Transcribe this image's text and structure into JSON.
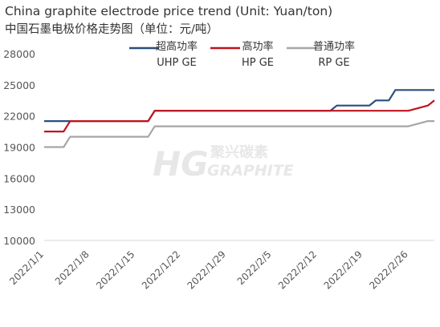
{
  "title_line1": "China graphite electrode price trend (Unit: Yuan/ton)",
  "title_line2": "中国石墨电极价格走势图（单位：元/吨）",
  "watermark": {
    "brand_cn": "聚兴碳素",
    "brand_en": "GRAPHITE"
  },
  "chart_data": {
    "type": "line",
    "title": "China graphite electrode price trend (Unit: Yuan/ton)",
    "subtitle": "中国石墨电极价格走势图（单位：元/吨）",
    "xlabel": "",
    "ylabel": "",
    "ylim": [
      10000,
      28000
    ],
    "y_ticks": [
      10000,
      13000,
      16000,
      19000,
      22000,
      25000,
      28000
    ],
    "y_tick_labels": [
      "10000",
      "13000",
      "16000",
      "19000",
      "22000",
      "25000",
      "28000"
    ],
    "x_range": [
      "2022/1/1",
      "2022/3/2"
    ],
    "x_ticks": [
      "2022/1/1",
      "2022/1/8",
      "2022/1/15",
      "2022/1/22",
      "2022/1/29",
      "2022/2/5",
      "2022/2/12",
      "2022/2/19",
      "2022/2/26"
    ],
    "grid": false,
    "legend_position": "top-right",
    "series": [
      {
        "name": "超高功率\nUHP GE",
        "color": "#2a4f7c",
        "points": [
          [
            "2022/1/1",
            21500
          ],
          [
            "2022/1/4",
            21500
          ],
          [
            "2022/1/5",
            21500
          ],
          [
            "2022/1/17",
            21500
          ],
          [
            "2022/1/18",
            22500
          ],
          [
            "2022/2/14",
            22500
          ],
          [
            "2022/2/15",
            23000
          ],
          [
            "2022/2/20",
            23000
          ],
          [
            "2022/2/21",
            23500
          ],
          [
            "2022/2/23",
            23500
          ],
          [
            "2022/2/24",
            24500
          ],
          [
            "2022/3/2",
            24500
          ]
        ]
      },
      {
        "name": "高功率\nHP GE",
        "color": "#c0141e",
        "points": [
          [
            "2022/1/1",
            20500
          ],
          [
            "2022/1/4",
            20500
          ],
          [
            "2022/1/5",
            21500
          ],
          [
            "2022/1/17",
            21500
          ],
          [
            "2022/1/18",
            22500
          ],
          [
            "2022/2/26",
            22500
          ],
          [
            "2022/3/1",
            23000
          ],
          [
            "2022/3/2",
            23500
          ]
        ]
      },
      {
        "name": "普通功率\nRP GE",
        "color": "#a6a6a6",
        "points": [
          [
            "2022/1/1",
            19000
          ],
          [
            "2022/1/4",
            19000
          ],
          [
            "2022/1/5",
            20000
          ],
          [
            "2022/1/17",
            20000
          ],
          [
            "2022/1/18",
            21000
          ],
          [
            "2022/2/26",
            21000
          ],
          [
            "2022/3/1",
            21500
          ],
          [
            "2022/3/2",
            21500
          ]
        ]
      }
    ]
  }
}
